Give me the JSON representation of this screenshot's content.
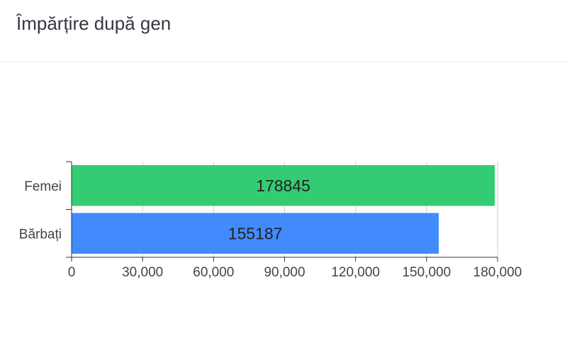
{
  "card": {
    "title": "Împărțire după gen"
  },
  "chart_data": {
    "type": "bar",
    "orientation": "horizontal",
    "title": "",
    "xlabel": "",
    "ylabel": "",
    "categories": [
      "Femei",
      "Bărbați"
    ],
    "values": [
      178845,
      155187
    ],
    "colors": [
      "#33cc73",
      "#428bfd"
    ],
    "value_labels": [
      "178845",
      "155187"
    ],
    "xlim": [
      0,
      180000
    ],
    "x_ticks": [
      0,
      30000,
      60000,
      90000,
      120000,
      150000,
      180000
    ],
    "x_tick_labels": [
      "0",
      "30,000",
      "60,000",
      "90,000",
      "120,000",
      "150,000",
      "180,000"
    ],
    "grid": true,
    "legend": "none"
  }
}
